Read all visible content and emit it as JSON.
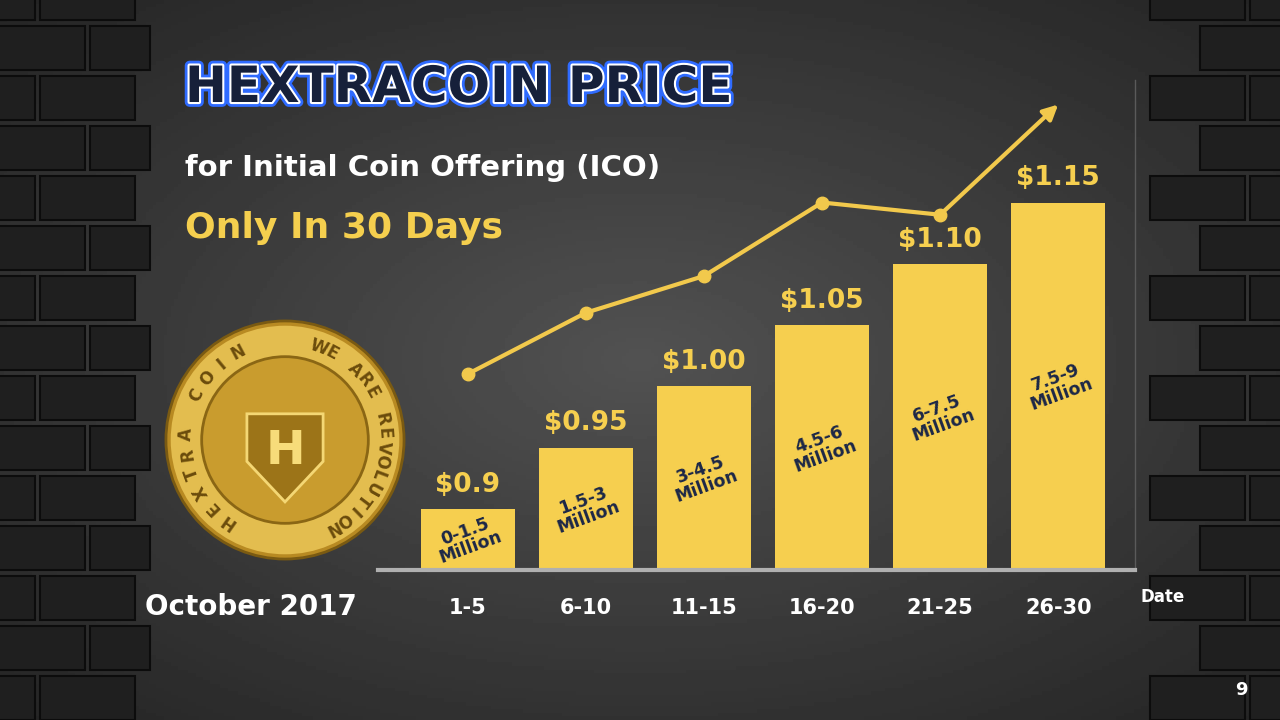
{
  "chart_data": {
    "type": "bar",
    "title": "HEXTRACOIN PRICE",
    "subtitle": "for Initial Coin Offering (ICO)",
    "tagline": "Only In 30 Days",
    "period_label": "October 2017",
    "x_label": "Date",
    "categories": [
      "1-5",
      "6-10",
      "11-15",
      "16-20",
      "21-25",
      "26-30"
    ],
    "ylim": [
      0.85,
      1.25
    ],
    "yticks": [],
    "tick_labels": "x",
    "grid": false,
    "data_labels": true,
    "series": [
      {
        "type": "bar",
        "color": "#f6cf4f",
        "values": [
          0.9,
          0.95,
          1.0,
          1.05,
          1.1,
          1.15
        ],
        "value_labels": [
          "$0.9",
          "$0.95",
          "$1.00",
          "$1.05",
          "$1.10",
          "$1.15"
        ],
        "bar_texts": [
          "0-1.5\nMillion",
          "1.5-3\nMillion",
          "3-4.5\nMillion",
          "4.5-6\nMillion",
          "6-7.5\nMillion",
          "7.5-9\nMillion"
        ]
      },
      {
        "type": "line",
        "color": "#f2c94c",
        "marker": "circle",
        "line_style": "solid",
        "values": [
          1.01,
          1.06,
          1.09,
          1.15,
          1.14,
          1.23
        ]
      }
    ]
  },
  "logo": {
    "left_text": "HEXTRA COIN",
    "right_text": "WE ARE REVOLUTION",
    "center_text": "H"
  },
  "page_number": "9"
}
